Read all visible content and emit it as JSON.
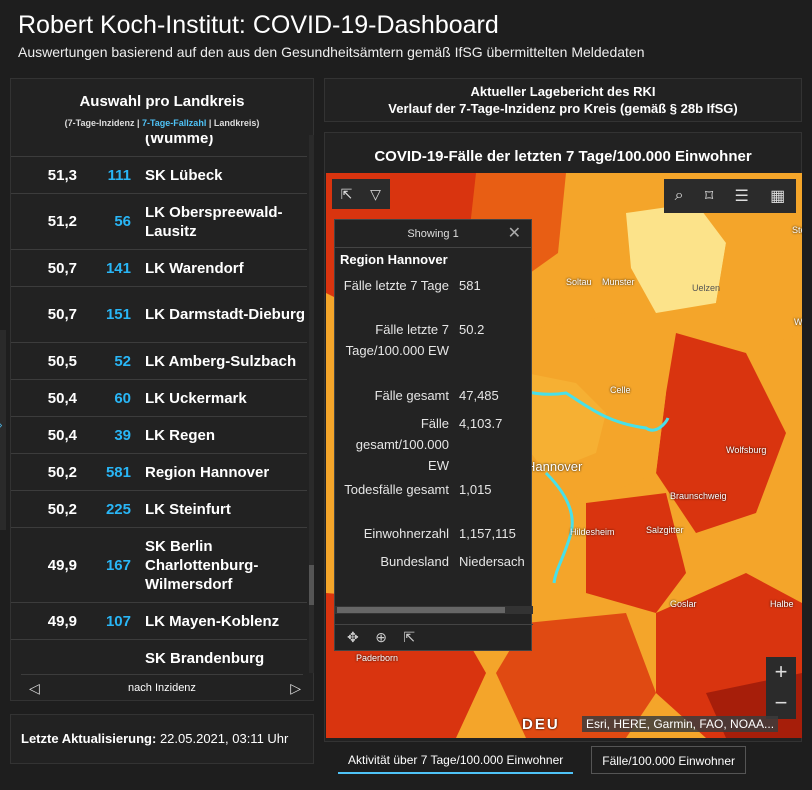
{
  "header": {
    "title": "Robert Koch-Institut: COVID-19-Dashboard",
    "subtitle": "Auswertungen basierend auf den aus den Gesundheitsämtern gemäß IfSG übermittelten Meldedaten"
  },
  "list": {
    "title": "Auswahl pro Landkreis",
    "sub_part1": "(7-Tage-Inzidenz | ",
    "sub_part2": "7-Tage-Fallzahl",
    "sub_part3": " | Landkreis)",
    "rows": [
      {
        "inz": "",
        "cnt": "",
        "name": "(Wümme)"
      },
      {
        "inz": "51,3",
        "cnt": "111",
        "name": "SK Lübeck"
      },
      {
        "inz": "51,2",
        "cnt": "56",
        "name": "LK Oberspreewald-Lausitz"
      },
      {
        "inz": "50,7",
        "cnt": "141",
        "name": "LK Warendorf"
      },
      {
        "inz": "50,7",
        "cnt": "151",
        "name": "LK Darmstadt-Dieburg"
      },
      {
        "inz": "50,5",
        "cnt": "52",
        "name": "LK Amberg-Sulzbach"
      },
      {
        "inz": "50,4",
        "cnt": "60",
        "name": "LK Uckermark"
      },
      {
        "inz": "50,4",
        "cnt": "39",
        "name": "LK Regen"
      },
      {
        "inz": "50,2",
        "cnt": "581",
        "name": "Region Hannover"
      },
      {
        "inz": "50,2",
        "cnt": "225",
        "name": "LK Steinfurt"
      },
      {
        "inz": "49,9",
        "cnt": "167",
        "name": "SK Berlin Charlottenburg-Wilmersdorf"
      },
      {
        "inz": "49,9",
        "cnt": "107",
        "name": "LK Mayen-Koblenz"
      },
      {
        "inz": "",
        "cnt": "",
        "name": "SK Brandenburg"
      }
    ],
    "footer": "nach Inzidenz"
  },
  "update": {
    "label": "Letzte Aktualisierung:",
    "value": "22.05.2021, 03:11 Uhr"
  },
  "info": {
    "line1": "Aktueller Lagebericht des RKI",
    "line2": "Verlauf der 7-Tage-Inzidenz pro Kreis (gemäß § 28b IfSG)"
  },
  "map": {
    "title": "COVID-19-Fälle der letzten 7 Tage/100.000 Einwohner",
    "labels": {
      "soltau": "Soltau",
      "munster": "Munster",
      "uelzen": "Uelzen",
      "celle": "Celle",
      "hannover": "Hannover",
      "wolfsburg": "Wolfsburg",
      "braunschweig": "Braunschweig",
      "salzgitter": "Salzgitter",
      "hildesheim": "Hildesheim",
      "goslar": "Goslar",
      "paderborn": "Paderborn",
      "halbe": "Halbe",
      "stenda": "Stend",
      "wolm": "Wolm"
    },
    "attribution_logo": "DEU",
    "attribution": "Esri, HERE, Garmin, FAO, NOAA..."
  },
  "popup": {
    "header": "Showing 1",
    "title": "Region Hannover",
    "fields": [
      {
        "k": "Fälle letzte 7 Tage",
        "v": "581"
      },
      {
        "k": "Fälle letzte 7 Tage/100.000 EW",
        "v": "50.2"
      },
      {
        "k": "Fälle gesamt",
        "v": "47,485"
      },
      {
        "k": "Fälle gesamt/100.000 EW",
        "v": "4,103.7"
      },
      {
        "k": "Todesfälle gesamt",
        "v": "1,015"
      },
      {
        "k": "Einwohnerzahl",
        "v": "1,157,115"
      },
      {
        "k": "Bundesland",
        "v": "Niedersach"
      }
    ]
  },
  "tabs": {
    "active": "Aktivität über 7 Tage/100.000 Einwohner",
    "inactive": "Fälle/100.000 Einwohner"
  }
}
